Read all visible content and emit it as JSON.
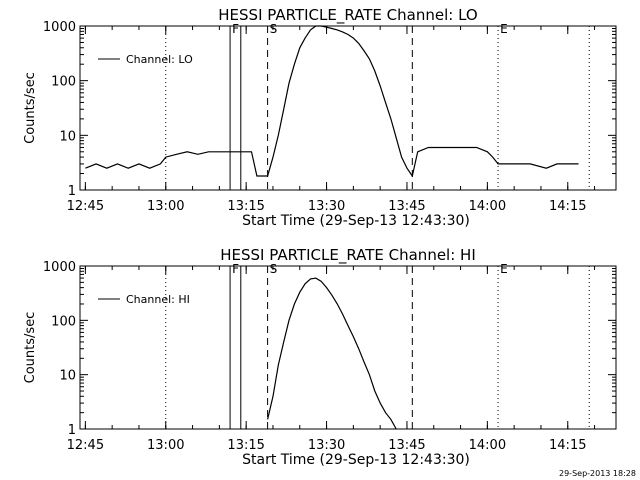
{
  "chart_data": [
    {
      "type": "line",
      "title": "HESSI PARTICLE_RATE Channel: LO",
      "xlabel": "Start Time (29-Sep-13 12:43:30)",
      "ylabel": "Counts/sec",
      "y_scale": "log",
      "ylim": [
        1,
        1000
      ],
      "xlim": [
        "12:44",
        "14:24"
      ],
      "x_ticks": [
        "12:45",
        "13:00",
        "13:15",
        "13:30",
        "13:45",
        "14:00",
        "14:15"
      ],
      "y_ticks": [
        "1",
        "10",
        "100",
        "1000"
      ],
      "legend": {
        "entries": [
          "Channel: LO"
        ],
        "position": "top-left"
      },
      "grid": false,
      "markers": [
        {
          "label": "",
          "time": "13:00",
          "style": "dotted"
        },
        {
          "label": "F",
          "time": "13:12",
          "style": "solid"
        },
        {
          "label": "",
          "time": "13:14",
          "style": "solid"
        },
        {
          "label": "S",
          "time": "13:19",
          "style": "dashed"
        },
        {
          "label": "",
          "time": "13:46",
          "style": "dashed"
        },
        {
          "label": "E",
          "time": "14:02",
          "style": "dotted"
        },
        {
          "label": "",
          "time": "14:19",
          "style": "dotted"
        }
      ],
      "series": [
        {
          "name": "Channel: LO",
          "x": [
            "12:45",
            "12:47",
            "12:49",
            "12:51",
            "12:53",
            "12:55",
            "12:57",
            "12:59",
            "13:00",
            "13:02",
            "13:04",
            "13:06",
            "13:08",
            "13:10",
            "13:12",
            "13:14",
            "13:16",
            "13:17",
            "13:18",
            "13:19",
            "13:20",
            "13:21",
            "13:22",
            "13:23",
            "13:24",
            "13:25",
            "13:26",
            "13:27",
            "13:28",
            "13:29",
            "13:30",
            "13:31",
            "13:32",
            "13:33",
            "13:34",
            "13:35",
            "13:36",
            "13:37",
            "13:38",
            "13:39",
            "13:40",
            "13:41",
            "13:42",
            "13:43",
            "13:44",
            "13:45",
            "13:46",
            "13:47",
            "13:49",
            "13:52",
            "13:55",
            "13:58",
            "14:00",
            "14:01",
            "14:02",
            "14:05",
            "14:08",
            "14:11",
            "14:13",
            "14:15",
            "14:17"
          ],
          "y": [
            2.5,
            3,
            2.5,
            3,
            2.5,
            3,
            2.5,
            3,
            4,
            4.5,
            5,
            4.5,
            5,
            5,
            5,
            5,
            5,
            1.8,
            1.8,
            1.8,
            4,
            10,
            30,
            90,
            200,
            400,
            600,
            850,
            1000,
            1000,
            950,
            900,
            850,
            780,
            700,
            600,
            480,
            350,
            250,
            150,
            80,
            40,
            20,
            9,
            4,
            2.5,
            1.8,
            5,
            6,
            6,
            6,
            6,
            5,
            4,
            3,
            3,
            3,
            2.5,
            3,
            3,
            3
          ]
        }
      ]
    },
    {
      "type": "line",
      "title": "HESSI PARTICLE_RATE Channel: HI",
      "xlabel": "Start Time (29-Sep-13 12:43:30)",
      "ylabel": "Counts/sec",
      "y_scale": "log",
      "ylim": [
        1,
        1000
      ],
      "xlim": [
        "12:44",
        "14:24"
      ],
      "x_ticks": [
        "12:45",
        "13:00",
        "13:15",
        "13:30",
        "13:45",
        "14:00",
        "14:15"
      ],
      "y_ticks": [
        "1",
        "10",
        "100",
        "1000"
      ],
      "legend": {
        "entries": [
          "Channel: HI"
        ],
        "position": "top-left"
      },
      "grid": false,
      "markers": [
        {
          "label": "",
          "time": "13:00",
          "style": "dotted"
        },
        {
          "label": "F",
          "time": "13:12",
          "style": "solid"
        },
        {
          "label": "",
          "time": "13:14",
          "style": "solid"
        },
        {
          "label": "S",
          "time": "13:19",
          "style": "dashed"
        },
        {
          "label": "",
          "time": "13:46",
          "style": "dashed"
        },
        {
          "label": "E",
          "time": "14:02",
          "style": "dotted"
        },
        {
          "label": "",
          "time": "14:19",
          "style": "dotted"
        }
      ],
      "series": [
        {
          "name": "Channel: HI",
          "x": [
            "13:19",
            "13:20",
            "13:21",
            "13:22",
            "13:23",
            "13:24",
            "13:25",
            "13:26",
            "13:27",
            "13:28",
            "13:29",
            "13:30",
            "13:31",
            "13:32",
            "13:33",
            "13:34",
            "13:35",
            "13:36",
            "13:37",
            "13:38",
            "13:39",
            "13:40",
            "13:41",
            "13:42",
            "13:43"
          ],
          "y": [
            1.5,
            4,
            15,
            40,
            100,
            200,
            330,
            470,
            580,
            600,
            520,
            400,
            290,
            200,
            130,
            80,
            50,
            30,
            17,
            10,
            5,
            3,
            2,
            1.5,
            1
          ]
        }
      ]
    }
  ],
  "footer": {
    "timestamp": "29-Sep-2013 18:28"
  }
}
